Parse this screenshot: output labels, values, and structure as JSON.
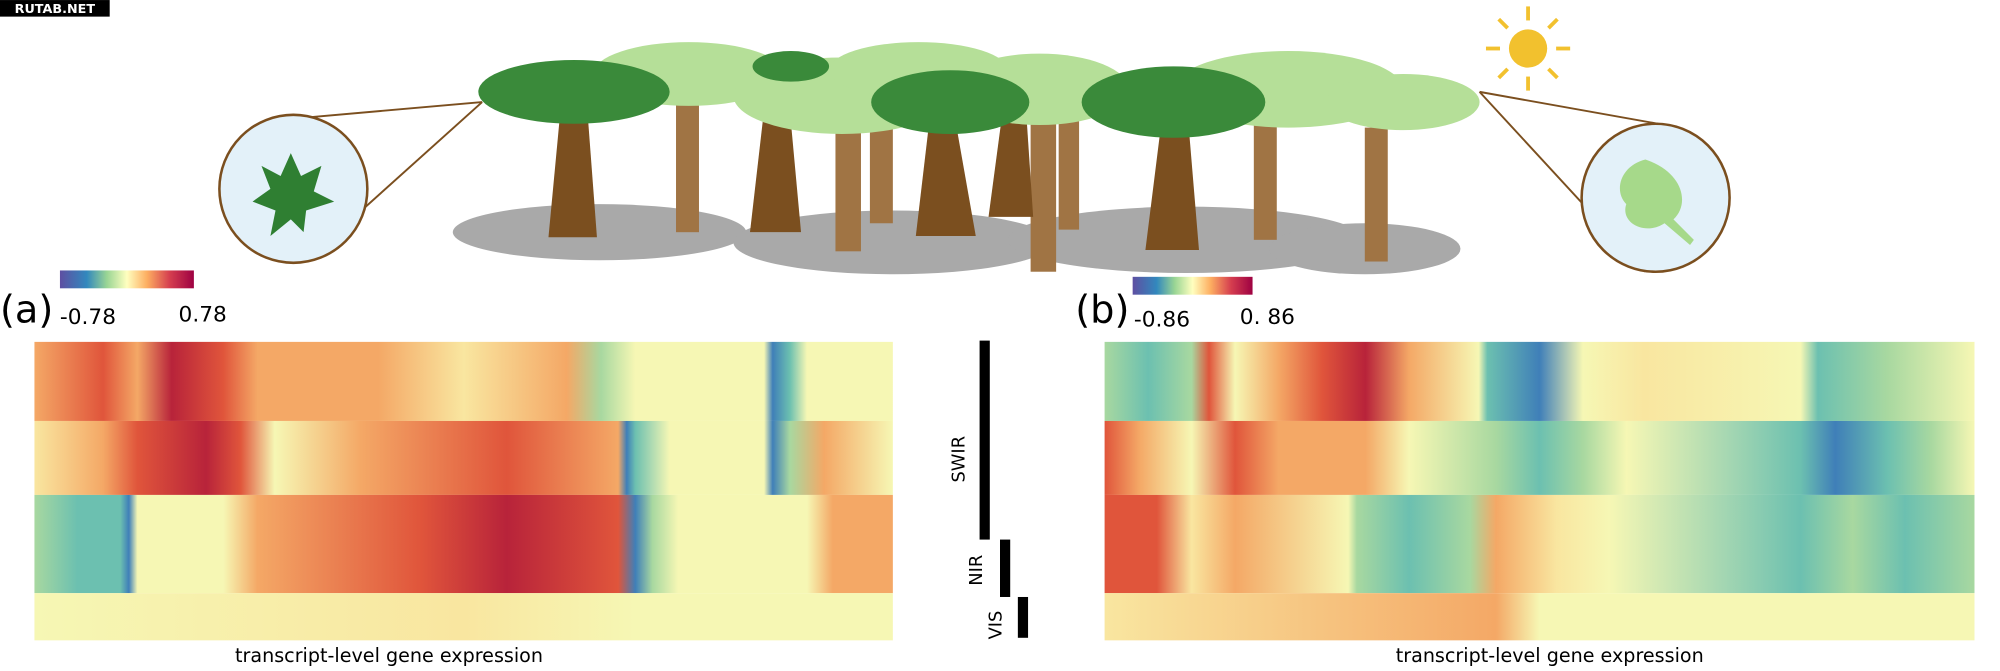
{
  "watermark": "RUTAB.NET",
  "panels": [
    {
      "label": "(a)",
      "colorbar": {
        "min_label": "-0.78",
        "max_label": "0.78"
      },
      "caption": "transcript-level gene expression"
    },
    {
      "label": "(b)",
      "colorbar": {
        "min_label": "-0.86",
        "max_label": "0. 86"
      },
      "caption": "transcript-level gene expression"
    }
  ],
  "bands": [
    "SWIR",
    "NIR",
    "VIS"
  ]
}
